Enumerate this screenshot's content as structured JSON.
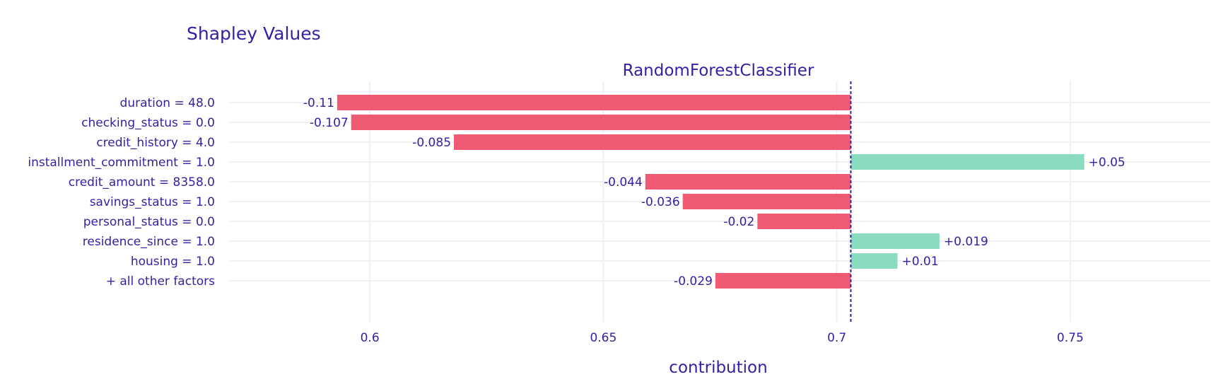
{
  "chart_data": {
    "type": "bar",
    "orientation": "horizontal",
    "title": "Shapley Values",
    "subtitle": "RandomForestClassifier",
    "xlabel": "contribution",
    "ylabel": "",
    "baseline": 0.703,
    "xlim": [
      0.57,
      0.78
    ],
    "xticks": [
      0.6,
      0.65,
      0.7,
      0.75
    ],
    "xtick_labels": [
      "0.6",
      "0.65",
      "0.7",
      "0.75"
    ],
    "grid": true,
    "legend": "none",
    "categories": [
      "duration = 48.0",
      "checking_status = 0.0",
      "credit_history = 4.0",
      "installment_commitment = 1.0",
      "credit_amount = 8358.0",
      "savings_status = 1.0",
      "personal_status = 0.0",
      "residence_since = 1.0",
      "housing = 1.0",
      "+ all other factors"
    ],
    "values": [
      -0.11,
      -0.107,
      -0.085,
      0.05,
      -0.044,
      -0.036,
      -0.02,
      0.019,
      0.01,
      -0.029
    ],
    "value_labels": [
      "-0.11",
      "-0.107",
      "-0.085",
      "+0.05",
      "-0.044",
      "-0.036",
      "-0.02",
      "+0.019",
      "+0.01",
      "-0.029"
    ],
    "colors": {
      "negative": "#f05a73",
      "positive": "#8bdcbe",
      "text": "#371ea3",
      "grid": "#f0f0f4",
      "baseline": "#371ea3"
    }
  }
}
